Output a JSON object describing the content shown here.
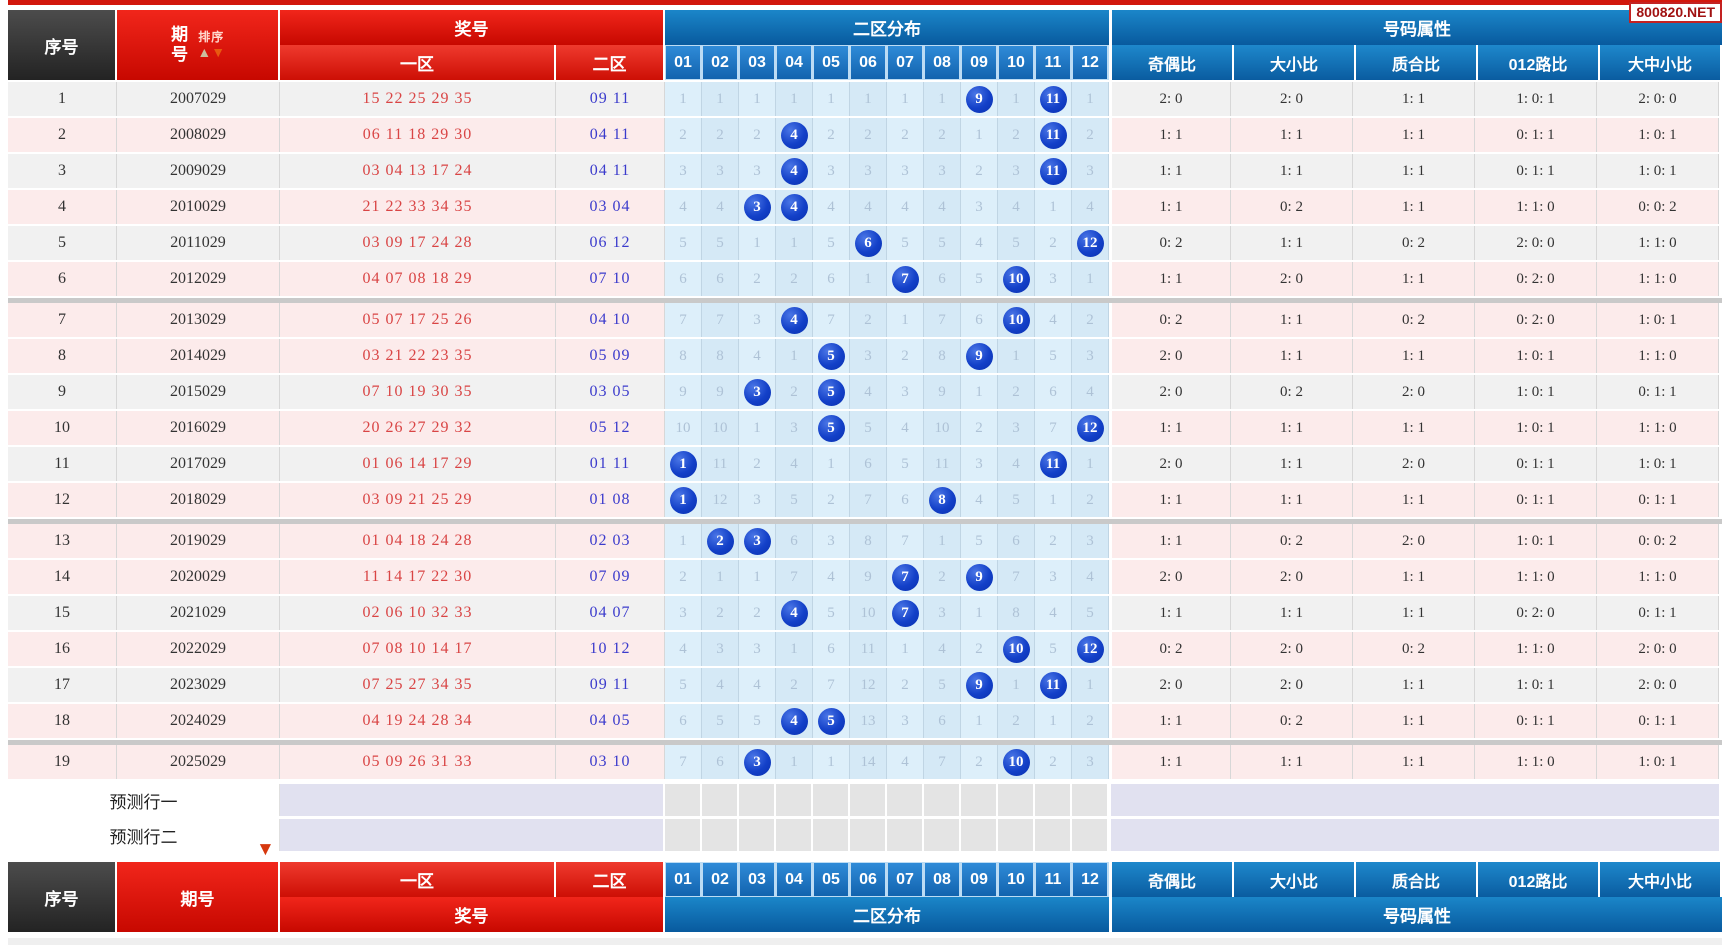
{
  "watermark": "800820.NET",
  "header": {
    "seq": "序号",
    "period": "期号",
    "sort": "排序",
    "sort_up_icon": "▲",
    "sort_down_icon": "▼",
    "prize": "奖号",
    "zone1": "一区",
    "zone2": "二区",
    "zone2_dist": "二区分布",
    "attrs_group": "号码属性",
    "dist_columns": [
      "01",
      "02",
      "03",
      "04",
      "05",
      "06",
      "07",
      "08",
      "09",
      "10",
      "11",
      "12"
    ],
    "attr_columns": [
      "奇偶比",
      "大小比",
      "质合比",
      "012路比",
      "大中小比"
    ]
  },
  "colors": {
    "header_red": "#d90f06",
    "header_dark": "#333333",
    "band_blue": "#0e6db4",
    "cell_blue": "#2f8bd8",
    "ball_blue": "#1340c8",
    "row_pink": "#fcebeb",
    "row_gray": "#f1f1f1",
    "dist_bg": "#d9ecf8",
    "zone1_text": "#d94444",
    "zone2_text": "#3b3bcc",
    "miss_text": "#aec2d6",
    "prediction_lavender": "#e1e1f0",
    "prediction_gray": "#e4e4e4",
    "separator_gray": "#c9c9c9"
  },
  "separators_after": [
    6,
    12,
    18
  ],
  "rows": [
    {
      "seq": "1",
      "period": "2007029",
      "zone1": "15 22 25 29 35",
      "zone2": "09 11",
      "miss": [
        1,
        1,
        1,
        1,
        1,
        1,
        1,
        1,
        9,
        1,
        11,
        1
      ],
      "balls": [
        9,
        11
      ],
      "attrs": [
        "2: 0",
        "2: 0",
        "1: 1",
        "1: 0: 1",
        "2: 0: 0"
      ],
      "bg": "g"
    },
    {
      "seq": "2",
      "period": "2008029",
      "zone1": "06 11 18 29 30",
      "zone2": "04 11",
      "miss": [
        2,
        2,
        2,
        4,
        2,
        2,
        2,
        2,
        1,
        2,
        11,
        2
      ],
      "balls": [
        4,
        11
      ],
      "attrs": [
        "1: 1",
        "1: 1",
        "1: 1",
        "0: 1: 1",
        "1: 0: 1"
      ],
      "bg": "p"
    },
    {
      "seq": "3",
      "period": "2009029",
      "zone1": "03 04 13 17 24",
      "zone2": "04 11",
      "miss": [
        3,
        3,
        3,
        4,
        3,
        3,
        3,
        3,
        2,
        3,
        11,
        3
      ],
      "balls": [
        4,
        11
      ],
      "attrs": [
        "1: 1",
        "1: 1",
        "1: 1",
        "0: 1: 1",
        "1: 0: 1"
      ],
      "bg": "g"
    },
    {
      "seq": "4",
      "period": "2010029",
      "zone1": "21 22 33 34 35",
      "zone2": "03 04",
      "miss": [
        4,
        4,
        3,
        4,
        4,
        4,
        4,
        4,
        3,
        4,
        1,
        4
      ],
      "balls": [
        3,
        4
      ],
      "attrs": [
        "1: 1",
        "0: 2",
        "1: 1",
        "1: 1: 0",
        "0: 0: 2"
      ],
      "bg": "p"
    },
    {
      "seq": "5",
      "period": "2011029",
      "zone1": "03 09 17 24 28",
      "zone2": "06 12",
      "miss": [
        5,
        5,
        1,
        1,
        5,
        6,
        5,
        5,
        4,
        5,
        2,
        12
      ],
      "balls": [
        6,
        12
      ],
      "attrs": [
        "0: 2",
        "1: 1",
        "0: 2",
        "2: 0: 0",
        "1: 1: 0"
      ],
      "bg": "g"
    },
    {
      "seq": "6",
      "period": "2012029",
      "zone1": "04 07 08 18 29",
      "zone2": "07 10",
      "miss": [
        6,
        6,
        2,
        2,
        6,
        1,
        7,
        6,
        5,
        10,
        3,
        1
      ],
      "balls": [
        7,
        10
      ],
      "attrs": [
        "1: 1",
        "2: 0",
        "1: 1",
        "0: 2: 0",
        "1: 1: 0"
      ],
      "bg": "p"
    },
    {
      "seq": "7",
      "period": "2013029",
      "zone1": "05 07 17 25 26",
      "zone2": "04 10",
      "miss": [
        7,
        7,
        3,
        4,
        7,
        2,
        1,
        7,
        6,
        10,
        4,
        2
      ],
      "balls": [
        4,
        10
      ],
      "attrs": [
        "0: 2",
        "1: 1",
        "0: 2",
        "0: 2: 0",
        "1: 0: 1"
      ],
      "bg": "p"
    },
    {
      "seq": "8",
      "period": "2014029",
      "zone1": "03 21 22 23 35",
      "zone2": "05 09",
      "miss": [
        8,
        8,
        4,
        1,
        5,
        3,
        2,
        8,
        9,
        1,
        5,
        3
      ],
      "balls": [
        5,
        9
      ],
      "attrs": [
        "2: 0",
        "1: 1",
        "1: 1",
        "1: 0: 1",
        "1: 1: 0"
      ],
      "bg": "p"
    },
    {
      "seq": "9",
      "period": "2015029",
      "zone1": "07 10 19 30 35",
      "zone2": "03 05",
      "miss": [
        9,
        9,
        3,
        2,
        5,
        4,
        3,
        9,
        1,
        2,
        6,
        4
      ],
      "balls": [
        3,
        5
      ],
      "attrs": [
        "2: 0",
        "0: 2",
        "2: 0",
        "1: 0: 1",
        "0: 1: 1"
      ],
      "bg": "g"
    },
    {
      "seq": "10",
      "period": "2016029",
      "zone1": "20 26 27 29 32",
      "zone2": "05 12",
      "miss": [
        10,
        10,
        1,
        3,
        5,
        5,
        4,
        10,
        2,
        3,
        7,
        12
      ],
      "balls": [
        5,
        12
      ],
      "attrs": [
        "1: 1",
        "1: 1",
        "1: 1",
        "1: 0: 1",
        "1: 1: 0"
      ],
      "bg": "p"
    },
    {
      "seq": "11",
      "period": "2017029",
      "zone1": "01 06 14 17 29",
      "zone2": "01 11",
      "miss": [
        1,
        11,
        2,
        4,
        1,
        6,
        5,
        11,
        3,
        4,
        11,
        1
      ],
      "balls": [
        1,
        11
      ],
      "attrs": [
        "2: 0",
        "1: 1",
        "2: 0",
        "0: 1: 1",
        "1: 0: 1"
      ],
      "bg": "g"
    },
    {
      "seq": "12",
      "period": "2018029",
      "zone1": "03 09 21 25 29",
      "zone2": "01 08",
      "miss": [
        1,
        12,
        3,
        5,
        2,
        7,
        6,
        8,
        4,
        5,
        1,
        2
      ],
      "balls": [
        1,
        8
      ],
      "attrs": [
        "1: 1",
        "1: 1",
        "1: 1",
        "0: 1: 1",
        "0: 1: 1"
      ],
      "bg": "p"
    },
    {
      "seq": "13",
      "period": "2019029",
      "zone1": "01 04 18 24 28",
      "zone2": "02 03",
      "miss": [
        1,
        2,
        3,
        6,
        3,
        8,
        7,
        1,
        5,
        6,
        2,
        3
      ],
      "balls": [
        2,
        3
      ],
      "attrs": [
        "1: 1",
        "0: 2",
        "2: 0",
        "1: 0: 1",
        "0: 0: 2"
      ],
      "bg": "p"
    },
    {
      "seq": "14",
      "period": "2020029",
      "zone1": "11 14 17 22 30",
      "zone2": "07 09",
      "miss": [
        2,
        1,
        1,
        7,
        4,
        9,
        7,
        2,
        9,
        7,
        3,
        4
      ],
      "balls": [
        7,
        9
      ],
      "attrs": [
        "2: 0",
        "2: 0",
        "1: 1",
        "1: 1: 0",
        "1: 1: 0"
      ],
      "bg": "p"
    },
    {
      "seq": "15",
      "period": "2021029",
      "zone1": "02 06 10 32 33",
      "zone2": "04 07",
      "miss": [
        3,
        2,
        2,
        4,
        5,
        10,
        7,
        3,
        1,
        8,
        4,
        5
      ],
      "balls": [
        4,
        7
      ],
      "attrs": [
        "1: 1",
        "1: 1",
        "1: 1",
        "0: 2: 0",
        "0: 1: 1"
      ],
      "bg": "g"
    },
    {
      "seq": "16",
      "period": "2022029",
      "zone1": "07 08 10 14 17",
      "zone2": "10 12",
      "miss": [
        4,
        3,
        3,
        1,
        6,
        11,
        1,
        4,
        2,
        10,
        5,
        12
      ],
      "balls": [
        10,
        12
      ],
      "attrs": [
        "0: 2",
        "2: 0",
        "0: 2",
        "1: 1: 0",
        "2: 0: 0"
      ],
      "bg": "p"
    },
    {
      "seq": "17",
      "period": "2023029",
      "zone1": "07 25 27 34 35",
      "zone2": "09 11",
      "miss": [
        5,
        4,
        4,
        2,
        7,
        12,
        2,
        5,
        9,
        1,
        11,
        1
      ],
      "balls": [
        9,
        11
      ],
      "attrs": [
        "2: 0",
        "2: 0",
        "1: 1",
        "1: 0: 1",
        "2: 0: 0"
      ],
      "bg": "g"
    },
    {
      "seq": "18",
      "period": "2024029",
      "zone1": "04 19 24 28 34",
      "zone2": "04 05",
      "miss": [
        6,
        5,
        5,
        4,
        5,
        13,
        3,
        6,
        1,
        2,
        1,
        2
      ],
      "balls": [
        4,
        5
      ],
      "attrs": [
        "1: 1",
        "0: 2",
        "1: 1",
        "0: 1: 1",
        "0: 1: 1"
      ],
      "bg": "p"
    },
    {
      "seq": "19",
      "period": "2025029",
      "zone1": "05 09 26 31 33",
      "zone2": "03 10",
      "miss": [
        7,
        6,
        3,
        1,
        1,
        14,
        4,
        7,
        2,
        10,
        2,
        3
      ],
      "balls": [
        3,
        10
      ],
      "attrs": [
        "1: 1",
        "1: 1",
        "1: 1",
        "1: 1: 0",
        "1: 0: 1"
      ],
      "bg": "p"
    }
  ],
  "prediction_rows": [
    {
      "label": "预测行一"
    },
    {
      "label": "预测行二"
    }
  ],
  "footer_arrow_icon": "▼"
}
